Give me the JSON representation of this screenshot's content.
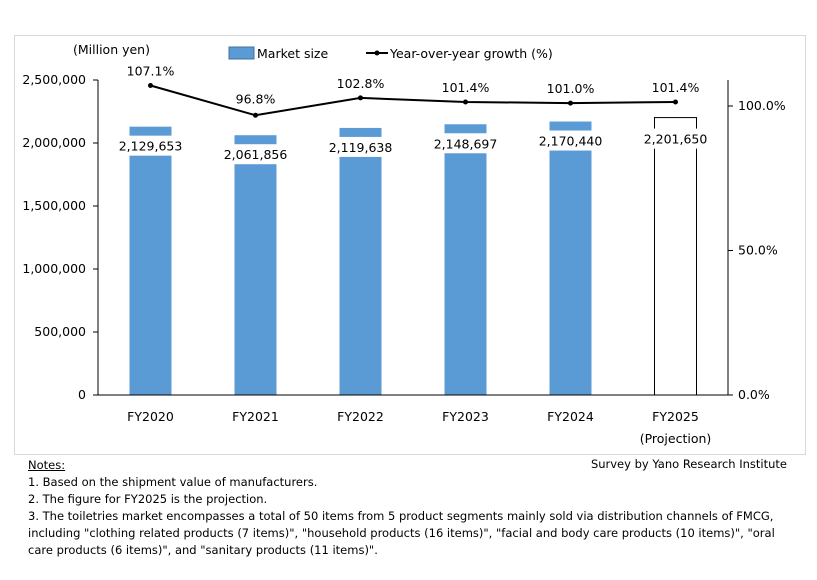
{
  "chart_data": {
    "type": "bar+line",
    "categories": [
      "FY2020",
      "FY2021",
      "FY2022",
      "FY2023",
      "FY2024",
      "FY2025"
    ],
    "category_sublabels": [
      "",
      "",
      "",
      "",
      "",
      "(Projection)"
    ],
    "series": [
      {
        "name": "Market size",
        "type": "bar",
        "axis": "left",
        "values": [
          2129653,
          2061856,
          2119638,
          2148697,
          2170440,
          2201650
        ],
        "labels": [
          "2,129,653",
          "2,061,856",
          "2,119,638",
          "2,148,697",
          "2,170,440",
          "2,201,650"
        ],
        "color": "#5b9bd5",
        "projected": [
          false,
          false,
          false,
          false,
          false,
          true
        ]
      },
      {
        "name": "Year-over-year growth (%)",
        "type": "line",
        "axis": "right",
        "values": [
          107.1,
          96.8,
          102.8,
          101.4,
          101.0,
          101.4
        ],
        "labels": [
          "107.1%",
          "96.8%",
          "102.8%",
          "101.4%",
          "101.0%",
          "101.4%"
        ],
        "color": "#000000"
      }
    ],
    "ylabel": "(Million yen)",
    "ylim": [
      0,
      2500000
    ],
    "yticks": [
      "0",
      "500,000",
      "1,000,000",
      "1,500,000",
      "2,000,000",
      "2,500,000"
    ],
    "y2lim": [
      0,
      109
    ],
    "y2ticks": [
      "0.0%",
      "50.0%",
      "100.0%"
    ],
    "legend": "top",
    "grid": false
  },
  "notes": {
    "heading": "Notes:",
    "source": "Survey by Yano Research Institute",
    "items": [
      "1. Based on the shipment value of manufacturers.",
      "2. The figure for FY2025 is the projection.",
      "3. The toiletries market encompasses a total of 50 items from 5 product segments mainly sold via distribution channels of FMCG, including \"clothing related products (7 items)\", \"household products (16 items)\", \"facial and body care products (10 items)\", \"oral care products (6 items)\", and \"sanitary products (11 items)\"."
    ]
  }
}
